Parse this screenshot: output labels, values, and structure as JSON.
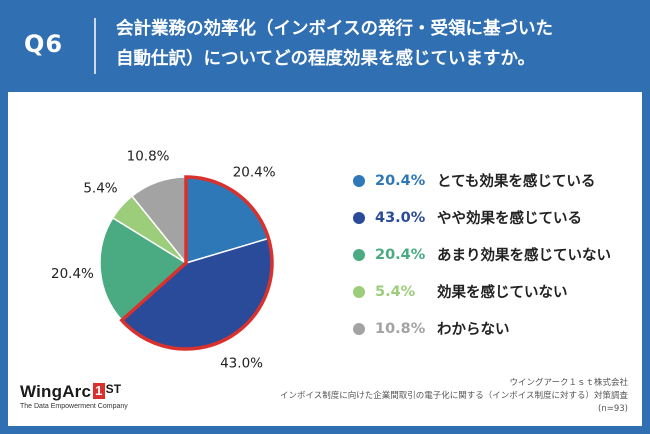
{
  "header": {
    "question_number": "Q6",
    "question_line1": "会計業務の効率化（インボイスの発行・受領に基づいた",
    "question_line2": "自動仕訳）についてどの程度効果を感じていますか。"
  },
  "colors": {
    "header_bg": "#2f6fb2",
    "highlight_border": "#d9322e"
  },
  "chart_data": {
    "type": "pie",
    "start_angle_deg": 0,
    "direction": "clockwise",
    "highlighted_series_indices": [
      0,
      1
    ],
    "series": [
      {
        "name": "とても効果を感じている",
        "value": 20.4,
        "label": "20.4%",
        "color": "#2e78b7"
      },
      {
        "name": "やや効果を感じている",
        "value": 43.0,
        "label": "43.0%",
        "color": "#2a4a9a"
      },
      {
        "name": "あまり効果を感じていない",
        "value": 20.4,
        "label": "20.4%",
        "color": "#4aaa82"
      },
      {
        "name": "効果を感じていない",
        "value": 5.4,
        "label": "5.4%",
        "color": "#9ccd7a"
      },
      {
        "name": "わからない",
        "value": 10.8,
        "label": "10.8%",
        "color": "#a3a3a3"
      }
    ],
    "legend_position": "right"
  },
  "footer": {
    "logo_main": "WingArc",
    "logo_box": "1",
    "logo_st": "ST",
    "logo_sub": "The Data Empowerment Company",
    "source_line1": "ウイングアーク１ｓｔ株式会社",
    "source_line2": "インボイス制度に向けた企業間取引の電子化に関する（インボイス制度に対する）対策調査",
    "source_line3": "(n=93)"
  }
}
